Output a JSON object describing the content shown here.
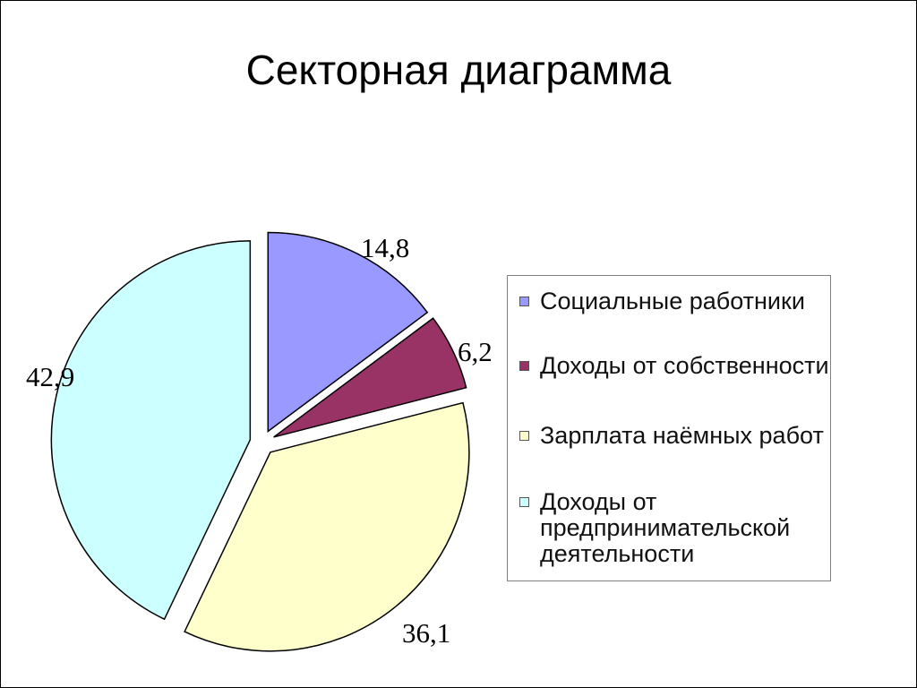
{
  "slide": {
    "title": "Секторная диаграмма"
  },
  "chart_data": {
    "type": "pie",
    "exploded": true,
    "start_angle_deg": 0,
    "direction": "clockwise",
    "slices": [
      {
        "label": "Социальные работники",
        "value": 14.8,
        "value_label": "14,8",
        "color": "#9999ff"
      },
      {
        "label": "Доходы от собственности",
        "value": 6.2,
        "value_label": "6,2",
        "color": "#993366"
      },
      {
        "label": "Зарплата наёмных работников",
        "value": 36.1,
        "value_label": "36,1",
        "color": "#ffffcc"
      },
      {
        "label": "Доходы от\nпредпринимательской\nдеятельности",
        "value": 42.9,
        "value_label": "42,9",
        "color": "#ccffff"
      }
    ],
    "legend_placement": "right"
  }
}
